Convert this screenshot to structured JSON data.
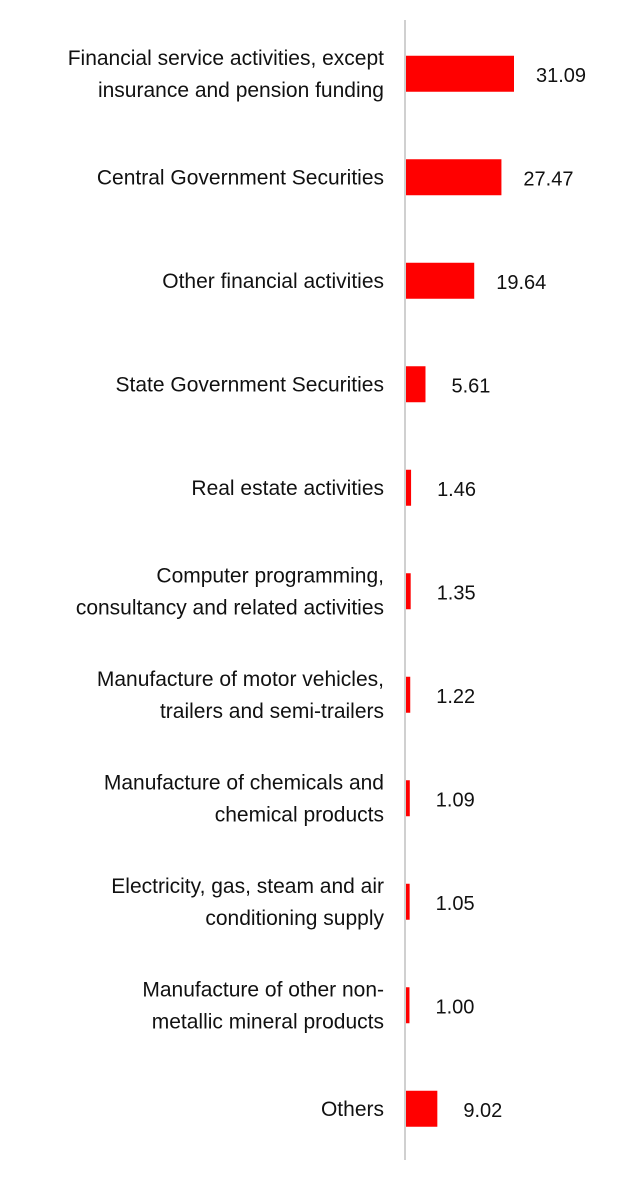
{
  "chart_data": {
    "type": "bar",
    "orientation": "horizontal",
    "title": "",
    "xlabel": "",
    "ylabel": "",
    "xlim": [
      0,
      40
    ],
    "grid": false,
    "legend": "none",
    "bar_color": "#ff0000",
    "axis_color": "#d0d0d0",
    "categories": [
      [
        "Financial service activities, except",
        "insurance and pension funding"
      ],
      [
        "Central Government Securities"
      ],
      [
        "Other financial activities"
      ],
      [
        "State Government Securities"
      ],
      [
        "Real estate activities"
      ],
      [
        "Computer programming,",
        "consultancy and related activities"
      ],
      [
        "Manufacture of motor vehicles,",
        "trailers and semi-trailers"
      ],
      [
        "Manufacture of chemicals and",
        "chemical products"
      ],
      [
        "Electricity, gas, steam and air",
        "conditioning supply"
      ],
      [
        "Manufacture of other non-",
        "metallic mineral products"
      ],
      [
        "Others"
      ]
    ],
    "values": [
      31.09,
      27.47,
      19.64,
      5.61,
      1.46,
      1.35,
      1.22,
      1.09,
      1.05,
      1.0,
      9.02
    ],
    "value_labels": [
      "31.09",
      "27.47",
      "19.64",
      "5.61",
      "1.46",
      "1.35",
      "1.22",
      "1.09",
      "1.05",
      "1.00",
      "9.02"
    ]
  }
}
